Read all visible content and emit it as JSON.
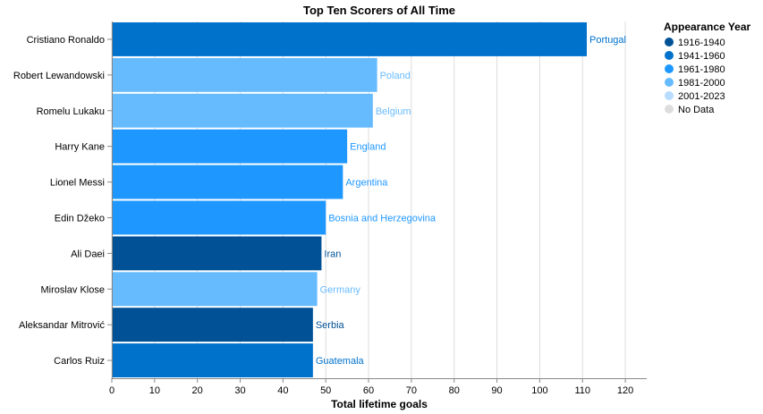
{
  "chart_data": {
    "type": "bar",
    "orientation": "horizontal",
    "title": "Top Ten Scorers of All Time",
    "xlabel": "Total lifetime goals",
    "ylabel": "",
    "xlim": [
      0,
      125
    ],
    "xticks": [
      0,
      10,
      20,
      30,
      40,
      50,
      60,
      70,
      80,
      90,
      100,
      110,
      120
    ],
    "grid": true,
    "legend": {
      "title": "Appearance Year",
      "placement": "right",
      "entries": [
        {
          "label": "1916-1940",
          "color": "#005196"
        },
        {
          "label": "1941-1960",
          "color": "#0072cc"
        },
        {
          "label": "1961-1980",
          "color": "#1e98ff"
        },
        {
          "label": "1981-2000",
          "color": "#66bbff"
        },
        {
          "label": "2001-2023",
          "color": "#b7dcff"
        },
        {
          "label": "No Data",
          "color": "#dddddd"
        }
      ]
    },
    "bars": [
      {
        "player": "Cristiano Ronaldo",
        "goals": 111,
        "country": "Portugal",
        "era": "1941-1960"
      },
      {
        "player": "Robert Lewandowski",
        "goals": 62,
        "country": "Poland",
        "era": "1981-2000"
      },
      {
        "player": "Romelu Lukaku",
        "goals": 61,
        "country": "Belgium",
        "era": "1981-2000"
      },
      {
        "player": "Harry Kane",
        "goals": 55,
        "country": "England",
        "era": "1961-1980"
      },
      {
        "player": "Lionel Messi",
        "goals": 54,
        "country": "Argentina",
        "era": "1961-1980"
      },
      {
        "player": "Edin Džeko",
        "goals": 50,
        "country": "Bosnia and Herzegovina",
        "era": "1961-1980"
      },
      {
        "player": "Ali Daei",
        "goals": 49,
        "country": "Iran",
        "era": "1916-1940"
      },
      {
        "player": "Miroslav Klose",
        "goals": 48,
        "country": "Germany",
        "era": "1981-2000"
      },
      {
        "player": "Aleksandar Mitrović",
        "goals": 47,
        "country": "Serbia",
        "era": "1916-1940"
      },
      {
        "player": "Carlos Ruiz",
        "goals": 47,
        "country": "Guatemala",
        "era": "1941-1960"
      }
    ]
  }
}
